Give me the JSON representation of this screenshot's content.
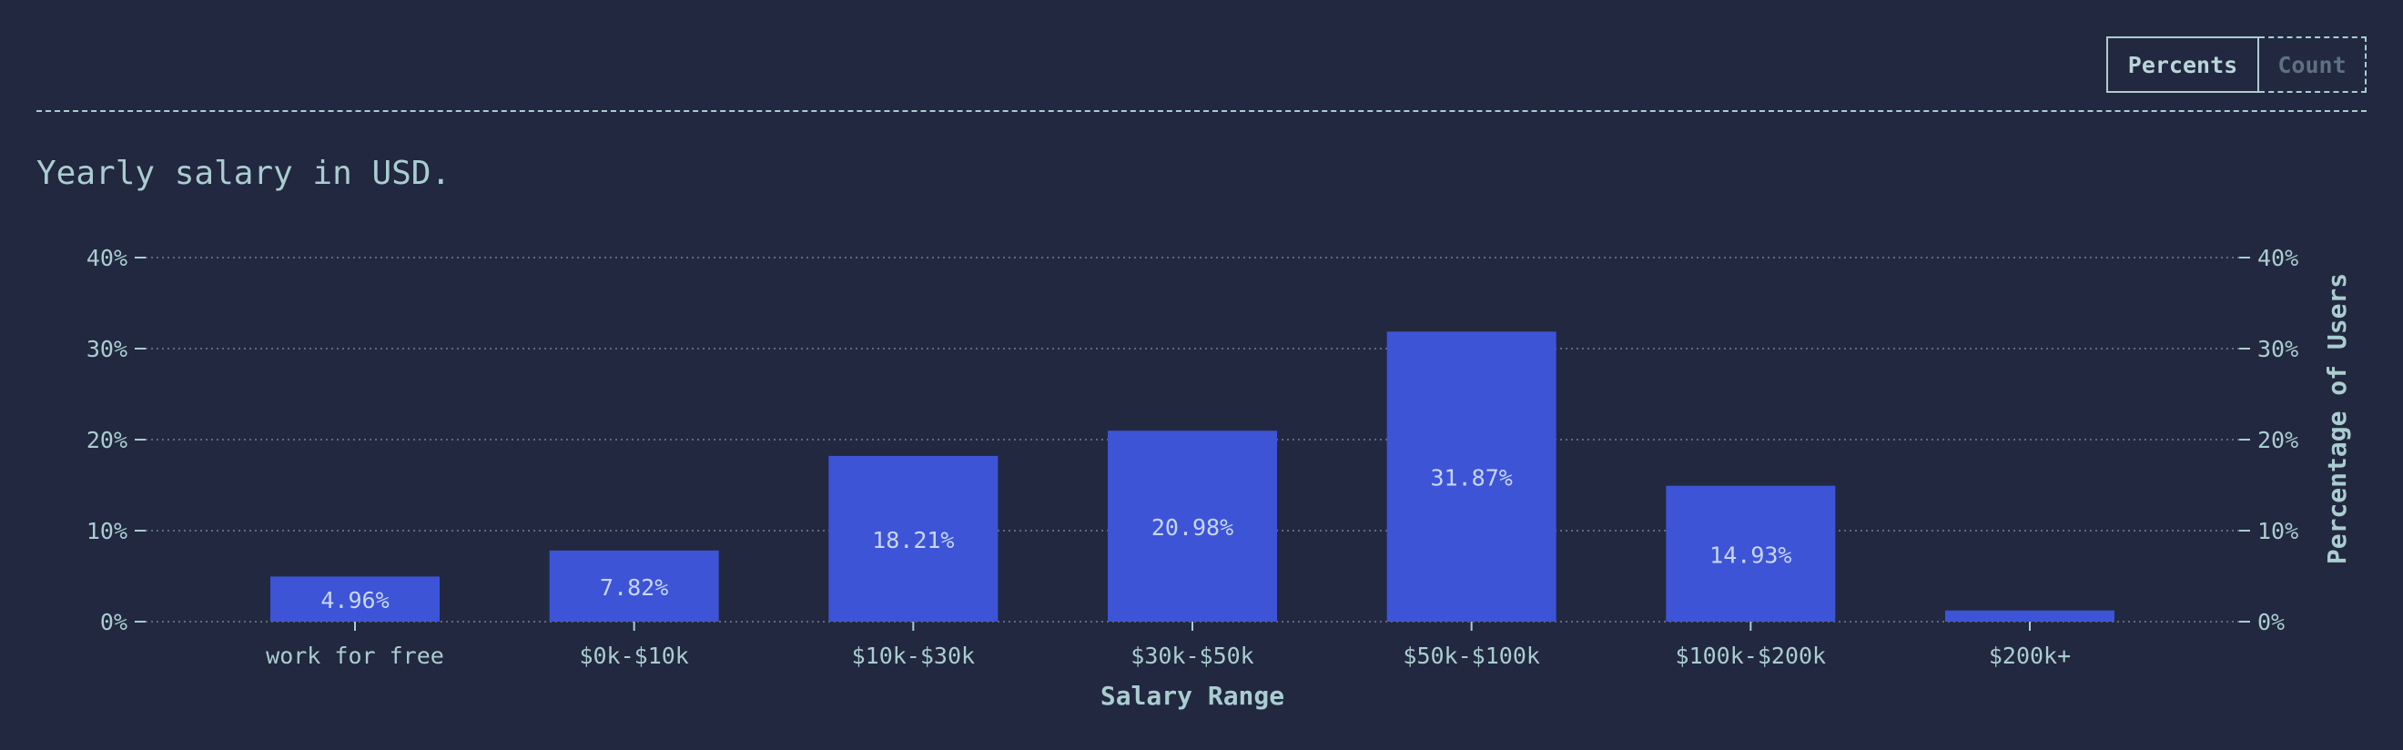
{
  "toggle": {
    "percents_label": "Percents",
    "count_label": "Count",
    "selected": "Percents"
  },
  "chart_data": {
    "type": "bar",
    "title": "Yearly salary in USD.",
    "xlabel": "Salary Range",
    "ylabel": "Percentage of Users",
    "categories": [
      "work for free",
      "$0k-$10k",
      "$10k-$30k",
      "$30k-$50k",
      "$50k-$100k",
      "$100k-$200k",
      "$200k+"
    ],
    "values": [
      4.96,
      7.82,
      18.21,
      20.98,
      31.87,
      14.93,
      1.23
    ],
    "data_labels": [
      "4.96%",
      "7.82%",
      "18.21%",
      "20.98%",
      "31.87%",
      "14.93%",
      ""
    ],
    "ylim": [
      0,
      40
    ],
    "yticks": [
      0,
      10,
      20,
      30,
      40
    ],
    "ytick_labels": [
      "0%",
      "10%",
      "20%",
      "30%",
      "40%"
    ],
    "grid": true,
    "colors": {
      "bar": "#3d54d6",
      "text": "#a9cdd0",
      "label": "#c8d6f2",
      "grid": "#5d6a7e"
    }
  }
}
